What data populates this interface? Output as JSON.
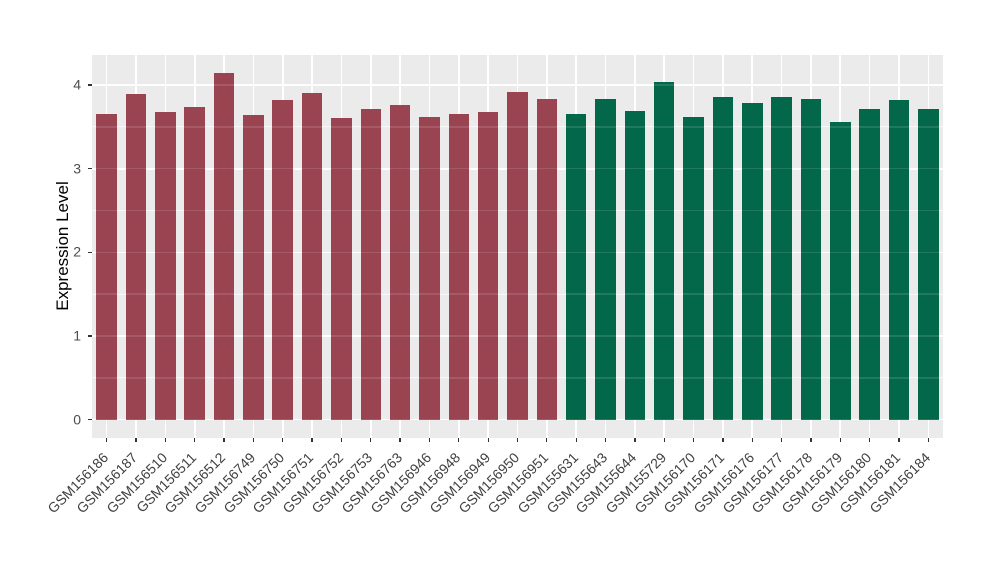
{
  "chart_data": {
    "type": "bar",
    "title": "",
    "xlabel": "",
    "ylabel": "Expression Level",
    "categories": [
      "GSM156186",
      "GSM156187",
      "GSM156510",
      "GSM156511",
      "GSM156512",
      "GSM156749",
      "GSM156750",
      "GSM156751",
      "GSM156752",
      "GSM156753",
      "GSM156763",
      "GSM156946",
      "GSM156948",
      "GSM156949",
      "GSM156950",
      "GSM156951",
      "GSM155631",
      "GSM155643",
      "GSM155644",
      "GSM155729",
      "GSM156170",
      "GSM156171",
      "GSM156176",
      "GSM156177",
      "GSM156178",
      "GSM156179",
      "GSM156180",
      "GSM156181",
      "GSM156184"
    ],
    "values": [
      3.66,
      3.89,
      3.68,
      3.74,
      4.15,
      3.64,
      3.82,
      3.9,
      3.61,
      3.72,
      3.76,
      3.62,
      3.66,
      3.68,
      3.92,
      3.84,
      3.66,
      3.84,
      3.69,
      4.04,
      3.62,
      3.86,
      3.79,
      3.86,
      3.84,
      3.56,
      3.72,
      3.82,
      3.71
    ],
    "groups": [
      {
        "color": "#9A4351",
        "count": 16
      },
      {
        "color": "#036849",
        "count": 13
      }
    ],
    "y_ticks": [
      0,
      1,
      2,
      3,
      4
    ],
    "y_minor": [
      0.5,
      1.5,
      2.5,
      3.5
    ],
    "ylim": [
      -0.22,
      4.36
    ],
    "bar_width_fraction": 0.7,
    "panel_bg": "#EBEBEB",
    "grid_color": "#FFFFFF",
    "tick_label_color": "#4D4D4D",
    "axis_title_color": "#000000",
    "legend": "none",
    "grid": "on"
  }
}
